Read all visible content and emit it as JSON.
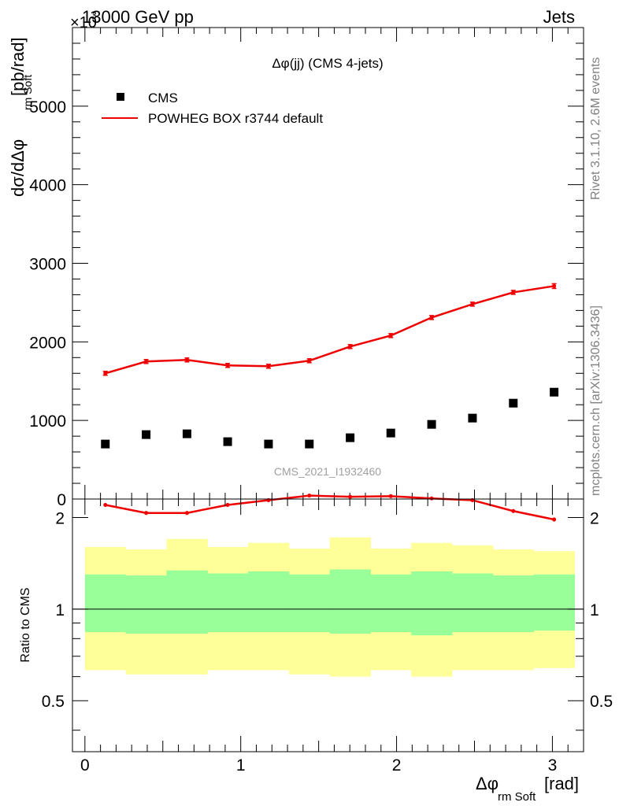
{
  "header": {
    "left": "13000 GeV pp",
    "right": "Jets",
    "exponent": "×10",
    "exponent_power": "3"
  },
  "side_labels": {
    "rivet": "Rivet 3.1.10,  2.6M events",
    "mcplots": "mcplots.cern.ch [arXiv:1306.3436]"
  },
  "watermark": "CMS_2021_I1932460",
  "colors": {
    "data": "#000000",
    "mc": "#ee0000",
    "band_inner": "#99ff99",
    "band_outer": "#ffff99"
  },
  "chart_data": [
    {
      "type": "scatter",
      "title": "Δφ(jj) (CMS 4-jets)",
      "ylabel": "dσ/dΔφ",
      "ylabel_sub": "rm Soft",
      "ylabel_unit": "[pb/rad]",
      "xlim": [
        -0.08,
        3.2
      ],
      "ylim": [
        0,
        6000
      ],
      "y_scale_factor": 1000,
      "yticks": [
        0,
        1000,
        2000,
        3000,
        4000,
        5000
      ],
      "ytick_labels": [
        "0",
        "1000",
        "2000",
        "3000",
        "4000",
        "5000"
      ],
      "legend_position": "top-left",
      "x": [
        0.131,
        0.393,
        0.655,
        0.916,
        1.178,
        1.44,
        1.702,
        1.963,
        2.225,
        2.487,
        2.749,
        3.011
      ],
      "series": [
        {
          "name": "CMS",
          "style": "markers",
          "values": [
            700,
            820,
            830,
            730,
            700,
            700,
            780,
            840,
            950,
            1030,
            1220,
            1360
          ]
        },
        {
          "name": "POWHEG BOX r3744 default",
          "style": "line",
          "values": [
            1600,
            1750,
            1770,
            1700,
            1690,
            1760,
            1940,
            2080,
            2310,
            2480,
            2630,
            2710
          ],
          "errors": [
            25,
            25,
            25,
            25,
            25,
            25,
            25,
            25,
            25,
            25,
            25,
            30
          ]
        }
      ]
    },
    {
      "type": "line",
      "ylabel": "Ratio to CMS",
      "xlabel": "Δφ",
      "xlabel_sub": "rm Soft",
      "xlabel_unit": "[rad]",
      "xlim": [
        -0.08,
        3.2
      ],
      "ylim": [
        0.34,
        2.3
      ],
      "yscale": "log",
      "yticks": [
        0.5,
        1,
        2
      ],
      "ytick_labels": [
        "0.5",
        "1",
        "2"
      ],
      "xticks": [
        0,
        1,
        2,
        3
      ],
      "xtick_labels": [
        "0",
        "1",
        "2",
        "3"
      ],
      "bin_edges": [
        0.0,
        0.262,
        0.524,
        0.786,
        1.047,
        1.309,
        1.571,
        1.833,
        2.094,
        2.356,
        2.618,
        2.88,
        3.142
      ],
      "band_inner": {
        "low": [
          0.84,
          0.83,
          0.83,
          0.84,
          0.84,
          0.84,
          0.83,
          0.84,
          0.82,
          0.84,
          0.84,
          0.85
        ],
        "high": [
          1.3,
          1.29,
          1.34,
          1.31,
          1.33,
          1.3,
          1.35,
          1.3,
          1.33,
          1.31,
          1.29,
          1.3
        ]
      },
      "band_outer": {
        "low": [
          0.63,
          0.61,
          0.61,
          0.63,
          0.63,
          0.61,
          0.6,
          0.63,
          0.6,
          0.63,
          0.63,
          0.64
        ],
        "high": [
          1.6,
          1.57,
          1.7,
          1.6,
          1.65,
          1.58,
          1.72,
          1.58,
          1.65,
          1.62,
          1.57,
          1.55
        ]
      },
      "x": [
        0.131,
        0.393,
        0.655,
        0.916,
        1.178,
        1.44,
        1.702,
        1.963,
        2.225,
        2.487,
        2.749,
        3.011
      ],
      "series": [
        {
          "name": "POWHEG BOX r3744 default",
          "values": [
            2.2,
            2.07,
            2.07,
            2.2,
            2.28,
            2.36,
            2.34,
            2.35,
            2.31,
            2.28,
            2.1,
            1.97
          ],
          "errors": [
            0.03,
            0.03,
            0.03,
            0.03,
            0.03,
            0.03,
            0.03,
            0.03,
            0.03,
            0.03,
            0.03,
            0.03
          ]
        }
      ]
    }
  ]
}
